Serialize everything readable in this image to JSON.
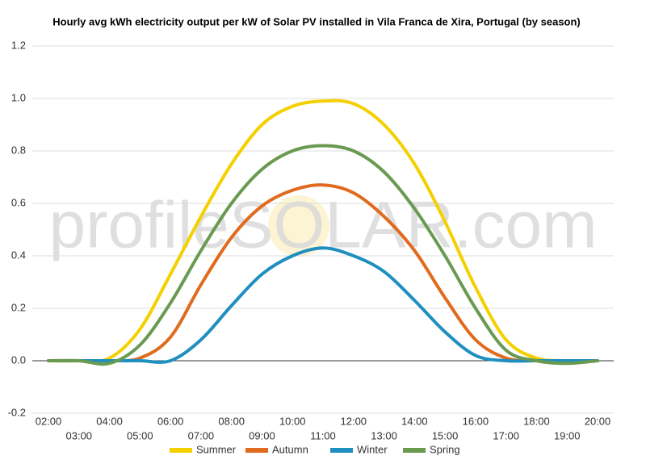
{
  "chart_data": {
    "type": "line",
    "title": "Hourly avg kWh electricity output per kW of Solar PV installed in Vila Franca de Xira, Portugal (by season)",
    "watermark": "profileSOLAR.com",
    "categories": [
      "02:00",
      "03:00",
      "04:00",
      "05:00",
      "06:00",
      "07:00",
      "08:00",
      "09:00",
      "10:00",
      "11:00",
      "12:00",
      "13:00",
      "14:00",
      "15:00",
      "16:00",
      "17:00",
      "18:00",
      "19:00",
      "20:00"
    ],
    "series": [
      {
        "name": "Summer",
        "color": "#f5d000",
        "values": [
          0,
          0,
          0.01,
          0.12,
          0.33,
          0.55,
          0.75,
          0.9,
          0.97,
          0.99,
          0.98,
          0.9,
          0.75,
          0.53,
          0.28,
          0.08,
          0.01,
          0,
          0
        ]
      },
      {
        "name": "Autumn",
        "color": "#e06b1e",
        "values": [
          0,
          0,
          0,
          0.01,
          0.09,
          0.29,
          0.47,
          0.59,
          0.65,
          0.67,
          0.64,
          0.55,
          0.42,
          0.24,
          0.08,
          0.01,
          0,
          0,
          0
        ]
      },
      {
        "name": "Winter",
        "color": "#1f8fc0",
        "values": [
          0,
          0,
          0,
          0,
          0,
          0.08,
          0.21,
          0.33,
          0.4,
          0.43,
          0.4,
          0.34,
          0.23,
          0.11,
          0.02,
          0,
          0,
          0,
          0
        ]
      },
      {
        "name": "Spring",
        "color": "#6a9a50",
        "values": [
          0,
          0,
          -0.01,
          0.06,
          0.22,
          0.42,
          0.6,
          0.73,
          0.8,
          0.82,
          0.8,
          0.72,
          0.58,
          0.4,
          0.2,
          0.04,
          0,
          -0.01,
          0
        ]
      }
    ],
    "ylim": [
      -0.2,
      1.2
    ],
    "yticks": [
      -0.2,
      {
        "value": 0,
        "label": "0.0"
      },
      0.2,
      0.4,
      0.6,
      0.8,
      {
        "value": 1,
        "label": "1.0"
      },
      1.2
    ],
    "grid": true
  }
}
